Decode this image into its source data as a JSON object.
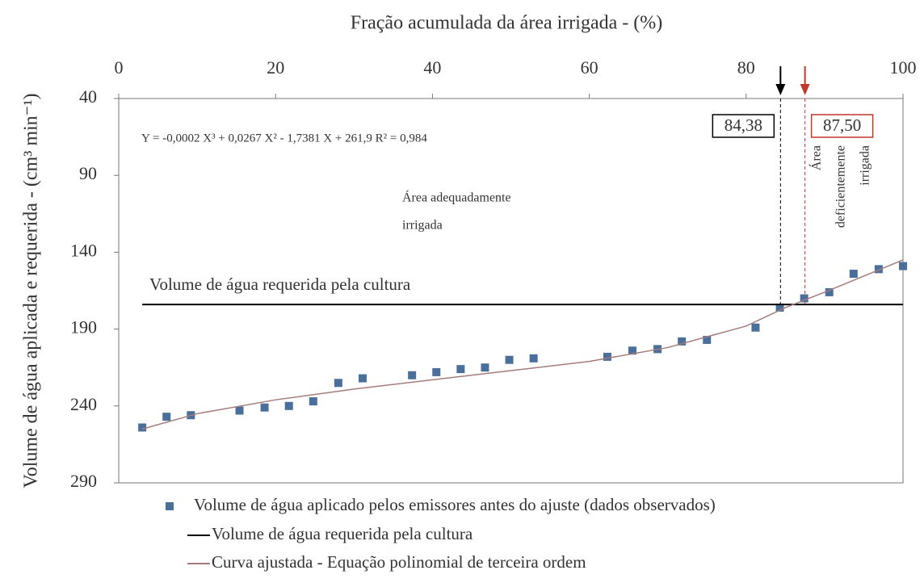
{
  "chart_data": {
    "type": "scatter",
    "title": "Fração  acumulada da área irrigada - (%)",
    "y_label": "Volume de água aplicada e requerida - (cm³ min⁻¹)",
    "xlim": [
      0,
      100
    ],
    "xticks": [
      0,
      20,
      40,
      60,
      80,
      100
    ],
    "ylim": [
      290,
      40
    ],
    "yticks": [
      40,
      90,
      140,
      190,
      240,
      290
    ],
    "series": [
      {
        "name": "Volume de água aplicado pelos emissores antes do ajuste (dados observados)",
        "kind": "points",
        "color": "#4a6f9a",
        "x": [
          3.0,
          6.1,
          9.2,
          15.4,
          18.6,
          21.7,
          24.8,
          28.0,
          31.1,
          37.4,
          40.5,
          43.6,
          46.7,
          49.8,
          52.9,
          62.3,
          65.5,
          68.7,
          71.8,
          75.0,
          81.2,
          84.3,
          87.4,
          90.6,
          93.7,
          96.9,
          100
        ],
        "values": [
          254,
          247,
          246,
          243,
          241,
          240,
          237,
          225,
          222,
          220,
          218,
          216,
          215,
          210,
          209,
          208,
          204,
          203,
          198,
          197,
          189,
          176,
          170,
          166,
          154,
          151,
          149
        ]
      },
      {
        "name": "Volume de água requerida pela cultura",
        "kind": "line",
        "color": "#000000",
        "x": [
          3,
          100
        ],
        "values": [
          174,
          174
        ]
      },
      {
        "name": "Curva ajustada - Equação polinomial de terceira ordem",
        "kind": "curve",
        "color": "#a57c7c",
        "x": [
          3,
          10,
          20,
          30,
          40,
          50,
          60,
          70,
          80,
          85,
          90,
          100
        ],
        "values": [
          255,
          245,
          236,
          229,
          223,
          217,
          211,
          202,
          188,
          176,
          166,
          145
        ]
      }
    ],
    "vlines": [
      {
        "value": 84.38,
        "label": "84,38",
        "color": "#000000"
      },
      {
        "value": 87.5,
        "label": "87,50",
        "color": "#c0392b"
      }
    ],
    "annotations": {
      "equation": "Y = -0,0002 X³ + 0,0267 X² - 1,7381 X + 261,9    R² = 0,984",
      "required": "Volume de água requerida pela cultura",
      "adequate": [
        "Área adequadamente",
        "irrigada"
      ],
      "deficient": [
        "Área",
        "deficientemente",
        "irrigada"
      ]
    }
  }
}
